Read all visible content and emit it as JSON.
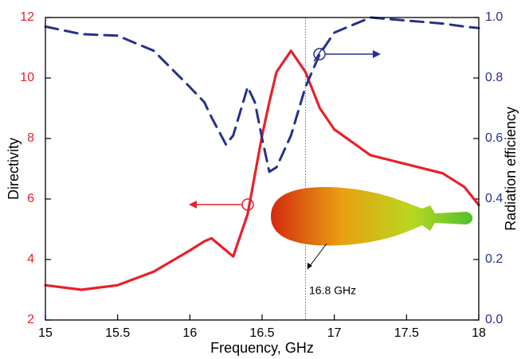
{
  "chart_data": {
    "type": "line",
    "x_label": "Frequency, GHz",
    "y_label": "Directivity",
    "y2_label": "Radiation efficiency",
    "annotation": "16.8 GHz",
    "vline": 16.8,
    "x": [
      15,
      15.25,
      15.5,
      15.75,
      16,
      16.1,
      16.15,
      16.25,
      16.3,
      16.4,
      16.45,
      16.5,
      16.55,
      16.6,
      16.7,
      16.8,
      16.9,
      17,
      17.25,
      17.5,
      17.75,
      17.9,
      18
    ],
    "series": [
      {
        "color": "#e8202a",
        "dash": false,
        "values": [
          3.15,
          3.0,
          3.15,
          3.6,
          4.3,
          4.6,
          4.7,
          4.3,
          4.1,
          5.5,
          6.8,
          8.1,
          9.2,
          10.2,
          10.9,
          10.2,
          9.0,
          8.3,
          7.45,
          7.15,
          6.85,
          6.4,
          5.8
        ]
      },
      {
        "color": "#27318a",
        "dash": true,
        "axis": "y2",
        "values": [
          0.97,
          0.945,
          0.94,
          0.89,
          0.77,
          0.72,
          0.67,
          0.58,
          0.61,
          0.77,
          0.72,
          0.6,
          0.49,
          0.505,
          0.61,
          0.77,
          0.88,
          0.95,
          1.0,
          0.99,
          0.98,
          0.97,
          0.965
        ]
      }
    ],
    "xlim": [
      15,
      18
    ],
    "xticks": [
      15,
      15.5,
      16,
      16.5,
      17,
      17.5,
      18
    ],
    "ylim": [
      2,
      12
    ],
    "yticks": [
      2,
      4,
      6,
      8,
      10,
      12
    ],
    "y2lim": [
      0,
      1
    ],
    "y2ticks": [
      {
        "value": 0,
        "label": "0.0"
      },
      0.2,
      0.4,
      0.6,
      0.8,
      {
        "value": 1,
        "label": "1.0"
      }
    ],
    "grid": false
  }
}
